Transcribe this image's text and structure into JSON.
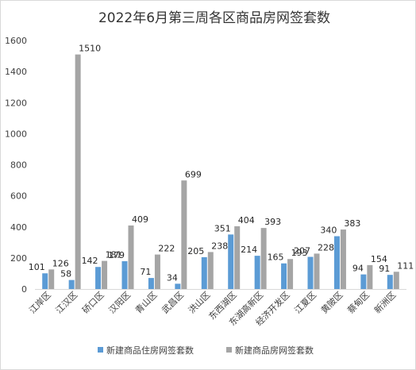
{
  "chart_data": {
    "type": "bar",
    "title": "2022年6月第三周各区商品房网签套数",
    "xlabel": "",
    "ylabel": "",
    "ylim": [
      0,
      1600
    ],
    "yticks": [
      0,
      200,
      400,
      600,
      800,
      1000,
      1200,
      1400,
      1600
    ],
    "grid": false,
    "legend_position": "bottom",
    "categories": [
      "江岸区",
      "江汉区",
      "硚口区",
      "汉阳区",
      "青山区",
      "武昌区",
      "洪山区",
      "东西湖区",
      "东湖高新区",
      "经济开发区",
      "江夏区",
      "黄陂区",
      "蔡甸区",
      "新洲区"
    ],
    "series": [
      {
        "name": "新建商品住房网签套数",
        "color": "#5B9BD5",
        "values": [
          101,
          58,
          142,
          179,
          71,
          34,
          205,
          351,
          214,
          165,
          207,
          340,
          94,
          91
        ]
      },
      {
        "name": "新建商品房网签套数",
        "color": "#A5A5A5",
        "values": [
          126,
          1510,
          181,
          409,
          222,
          699,
          238,
          404,
          393,
          193,
          228,
          383,
          154,
          111
        ]
      }
    ]
  }
}
